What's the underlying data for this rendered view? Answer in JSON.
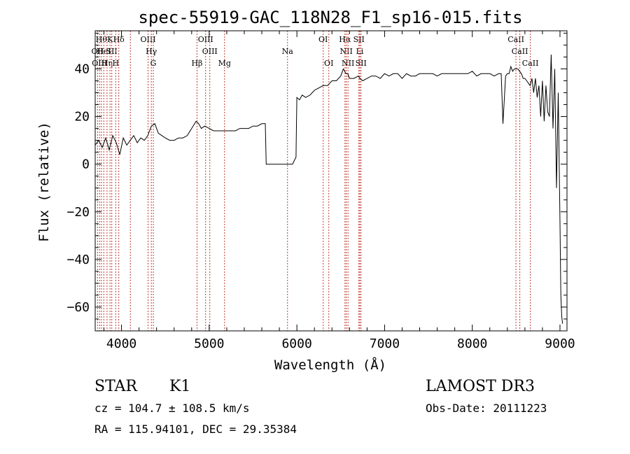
{
  "chart_data": {
    "type": "line",
    "title": "spec-55919-GAC_118N28_F1_sp16-015.fits",
    "xlabel": "Wavelength (Å)",
    "ylabel": "Flux (relative)",
    "xlim": [
      3700,
      9080
    ],
    "ylim": [
      -70,
      56
    ],
    "xticks": [
      4000,
      5000,
      6000,
      7000,
      8000,
      9000
    ],
    "yticks": [
      -60,
      -40,
      -20,
      0,
      20,
      40
    ],
    "series": [
      {
        "x": [
          3700,
          3740,
          3780,
          3820,
          3860,
          3900,
          3940,
          3980,
          4020,
          4060,
          4100,
          4140,
          4180,
          4220,
          4260,
          4300,
          4340,
          4380,
          4420,
          4460,
          4500,
          4550,
          4600,
          4650,
          4700,
          4750,
          4800,
          4850,
          4880,
          4910,
          4950,
          5000,
          5050,
          5100,
          5150,
          5200,
          5250,
          5300,
          5350,
          5400,
          5450,
          5500,
          5550,
          5600,
          5640,
          5650,
          5700,
          5800,
          5900,
          5950,
          5990,
          5992,
          6000,
          6030,
          6060,
          6100,
          6150,
          6200,
          6250,
          6300,
          6350,
          6400,
          6450,
          6500,
          6530,
          6560,
          6580,
          6600,
          6650,
          6700,
          6720,
          6750,
          6800,
          6850,
          6900,
          6950,
          7000,
          7050,
          7100,
          7150,
          7200,
          7250,
          7300,
          7350,
          7400,
          7450,
          7500,
          7550,
          7600,
          7650,
          7700,
          7750,
          7800,
          7850,
          7900,
          7950,
          8000,
          8050,
          8100,
          8150,
          8200,
          8250,
          8300,
          8330,
          8350,
          8380,
          8400,
          8420,
          8440,
          8460,
          8480,
          8500,
          8520,
          8540,
          8560,
          8580,
          8600,
          8620,
          8640,
          8660,
          8680,
          8700,
          8720,
          8740,
          8760,
          8780,
          8800,
          8820,
          8840,
          8860,
          8880,
          8900,
          8920,
          8940,
          8960,
          8980,
          9000,
          9010,
          9020,
          9030
        ],
        "y": [
          8,
          10,
          7,
          11,
          6,
          12,
          9,
          4,
          11,
          8,
          10,
          12,
          9,
          11,
          10,
          12,
          16,
          17,
          13,
          12,
          11,
          10,
          10,
          11,
          11,
          12,
          15,
          18,
          17,
          15,
          16,
          15,
          14,
          14,
          14,
          14,
          14,
          14,
          15,
          15,
          15,
          16,
          16,
          17,
          17,
          0,
          0,
          0,
          0,
          0,
          3,
          8,
          28,
          27,
          29,
          28,
          29,
          31,
          32,
          33,
          33,
          35,
          35,
          37,
          40,
          38,
          38,
          36,
          36,
          37,
          36,
          35,
          36,
          37,
          37,
          36,
          38,
          37,
          38,
          38,
          36,
          38,
          37,
          37,
          38,
          38,
          38,
          38,
          37,
          38,
          38,
          38,
          38,
          38,
          38,
          38,
          39,
          37,
          38,
          38,
          38,
          37,
          38,
          38,
          17,
          37,
          38,
          38,
          41,
          39,
          40,
          40,
          40,
          39,
          38,
          36,
          36,
          35,
          34,
          33,
          36,
          30,
          36,
          28,
          33,
          20,
          35,
          18,
          33,
          22,
          20,
          46,
          15,
          40,
          -10,
          30,
          -25,
          -55,
          -64,
          -67
        ]
      }
    ],
    "lines": [
      {
        "w": 3727,
        "label": "OII",
        "row": 1
      },
      {
        "w": 3750,
        "label": "OIII",
        "row": 2
      },
      {
        "w": 3771,
        "label": "Hθ",
        "row": 0
      },
      {
        "w": 3798,
        "label": "HeI",
        "row": 1
      },
      {
        "w": 3835,
        "label": "Hη",
        "row": 2
      },
      {
        "w": 3869,
        "label": "K",
        "row": 0
      },
      {
        "w": 3889,
        "label": "SII",
        "row": 1
      },
      {
        "w": 3934,
        "label": "H",
        "row": 2
      },
      {
        "w": 3969,
        "label": "Hδ",
        "row": 0
      },
      {
        "w": 4101,
        "label": "",
        "row": 0
      },
      {
        "w": 4303,
        "label": "OIII",
        "row": 0
      },
      {
        "w": 4340,
        "label": "Hγ",
        "row": 1
      },
      {
        "w": 4363,
        "label": "G",
        "row": 2
      },
      {
        "w": 4861,
        "label": "Hβ",
        "row": 2
      },
      {
        "w": 4959,
        "label": "OIII",
        "row": 0
      },
      {
        "w": 5007,
        "label": "OIII",
        "row": 1
      },
      {
        "w": 5175,
        "label": "Mg",
        "row": 2
      },
      {
        "w": 5893,
        "label": "Na",
        "row": 1
      },
      {
        "w": 6300,
        "label": "OI",
        "row": 0
      },
      {
        "w": 6364,
        "label": "OI",
        "row": 2
      },
      {
        "w": 6548,
        "label": "Hα",
        "row": 0
      },
      {
        "w": 6563,
        "label": "NII",
        "row": 1
      },
      {
        "w": 6583,
        "label": "NII",
        "row": 2
      },
      {
        "w": 6707,
        "label": "SII",
        "row": 0
      },
      {
        "w": 6717,
        "label": "Li",
        "row": 1
      },
      {
        "w": 6731,
        "label": "SII",
        "row": 2
      },
      {
        "w": 8498,
        "label": "CaII",
        "row": 0
      },
      {
        "w": 8542,
        "label": "CaII",
        "row": 1
      },
      {
        "w": 8662,
        "label": "CaII",
        "row": 2
      }
    ]
  },
  "info": {
    "class": "STAR",
    "subclass": "K1",
    "survey": "LAMOST DR3",
    "cz": "cz = 104.7 ± 108.5 km/s",
    "obs_date": "Obs-Date: 20111223",
    "radec": "RA = 115.94101, DEC =  29.35384"
  }
}
